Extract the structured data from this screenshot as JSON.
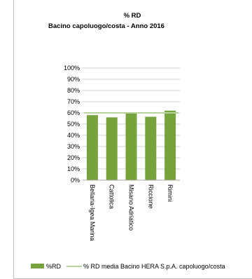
{
  "chart_data": {
    "type": "bar",
    "title": "% RD",
    "subtitle": "Bacino capoluogo/costa - Anno 2016",
    "categories": [
      "Bellaria-Igea Marina",
      "Cattolica",
      "Misano Adriatico",
      "Riccione",
      "Rimini"
    ],
    "series": [
      {
        "name": "%RD",
        "values": [
          58,
          56,
          59.5,
          56.5,
          62
        ],
        "color": "#77a33d"
      }
    ],
    "reference_line": {
      "name": "% RD media Bacino HERA S.p.A. capoluogo/costa",
      "value": 60,
      "color": "#b5d39a"
    },
    "ylim": [
      0,
      100
    ],
    "yticks": [
      "0%",
      "10%",
      "20%",
      "30%",
      "40%",
      "50%",
      "60%",
      "70%",
      "80%",
      "90%",
      "100%"
    ],
    "grid": true,
    "legend_position": "bottom"
  }
}
